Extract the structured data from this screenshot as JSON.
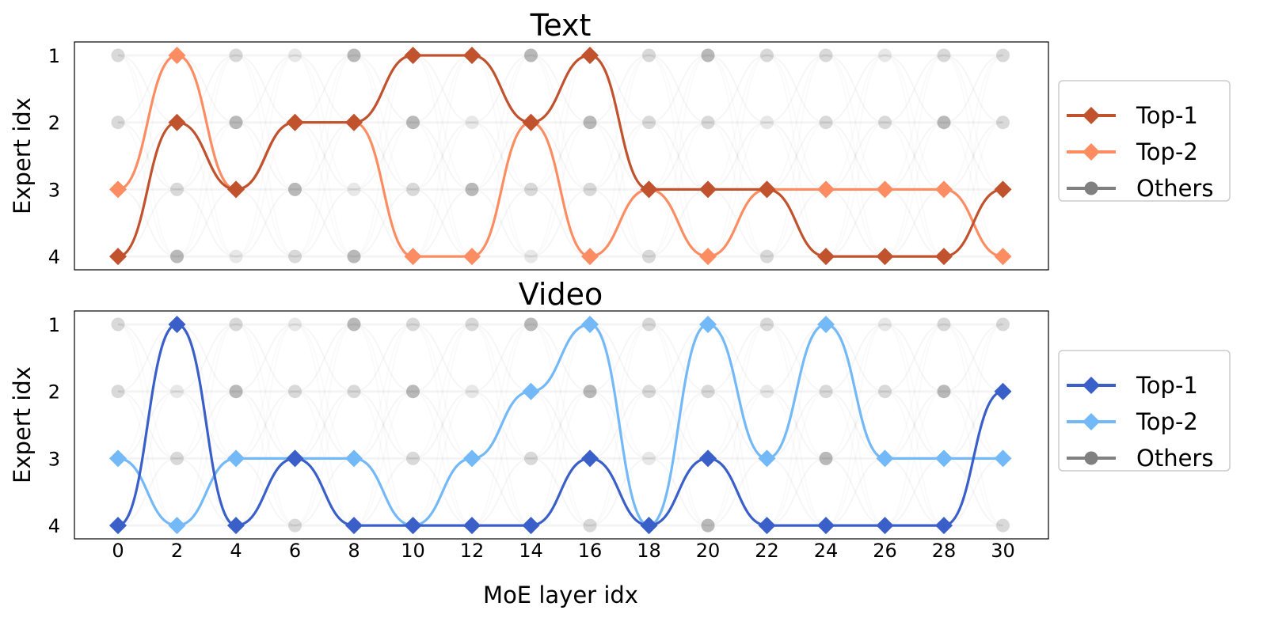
{
  "figure": {
    "xlabel": "MoE layer idx",
    "x_ticks": [
      "0",
      "2",
      "4",
      "6",
      "8",
      "10",
      "12",
      "14",
      "16",
      "18",
      "20",
      "22",
      "24",
      "26",
      "28",
      "30"
    ]
  },
  "chart_data": [
    {
      "type": "line",
      "title": "Text",
      "xlabel": "",
      "ylabel": "Expert idx",
      "x": [
        0,
        2,
        4,
        6,
        8,
        10,
        12,
        14,
        16,
        18,
        20,
        22,
        24,
        26,
        28,
        30
      ],
      "y_ticks": [
        "1",
        "2",
        "3",
        "4"
      ],
      "ylim": [
        1,
        4
      ],
      "y_inverted": true,
      "legend_position": "right",
      "series": [
        {
          "name": "Top-1",
          "color": "#c0522e",
          "marker": "diamond",
          "values": [
            4,
            2,
            3,
            2,
            2,
            1,
            1,
            2,
            1,
            3,
            3,
            3,
            4,
            4,
            4,
            3
          ]
        },
        {
          "name": "Top-2",
          "color": "#fc8d62",
          "marker": "diamond",
          "values": [
            3,
            1,
            3,
            2,
            2,
            4,
            4,
            2,
            4,
            3,
            4,
            3,
            3,
            3,
            3,
            4
          ]
        },
        {
          "name": "Others",
          "color": "#808080",
          "marker": "circle",
          "points": [
            [
              0,
              1
            ],
            [
              0,
              2
            ],
            [
              2,
              3
            ],
            [
              2,
              4
            ],
            [
              4,
              1
            ],
            [
              4,
              2
            ],
            [
              4,
              4
            ],
            [
              6,
              1
            ],
            [
              6,
              3
            ],
            [
              6,
              4
            ],
            [
              8,
              1
            ],
            [
              8,
              3
            ],
            [
              8,
              4
            ],
            [
              10,
              2
            ],
            [
              10,
              3
            ],
            [
              12,
              2
            ],
            [
              12,
              3
            ],
            [
              14,
              1
            ],
            [
              14,
              3
            ],
            [
              14,
              4
            ],
            [
              16,
              2
            ],
            [
              16,
              3
            ],
            [
              18,
              1
            ],
            [
              18,
              2
            ],
            [
              18,
              4
            ],
            [
              20,
              1
            ],
            [
              20,
              2
            ],
            [
              22,
              1
            ],
            [
              22,
              2
            ],
            [
              22,
              4
            ],
            [
              24,
              1
            ],
            [
              24,
              2
            ],
            [
              26,
              1
            ],
            [
              26,
              2
            ],
            [
              28,
              1
            ],
            [
              28,
              2
            ],
            [
              30,
              1
            ],
            [
              30,
              2
            ]
          ]
        }
      ]
    },
    {
      "type": "line",
      "title": "Video",
      "xlabel": "MoE layer idx",
      "ylabel": "Expert idx",
      "x": [
        0,
        2,
        4,
        6,
        8,
        10,
        12,
        14,
        16,
        18,
        20,
        22,
        24,
        26,
        28,
        30
      ],
      "y_ticks": [
        "1",
        "2",
        "3",
        "4"
      ],
      "ylim": [
        1,
        4
      ],
      "y_inverted": true,
      "legend_position": "right",
      "series": [
        {
          "name": "Top-1",
          "color": "#3a5fc8",
          "marker": "diamond",
          "values": [
            4,
            1,
            4,
            3,
            4,
            4,
            4,
            4,
            3,
            4,
            3,
            4,
            4,
            4,
            4,
            2
          ]
        },
        {
          "name": "Top-2",
          "color": "#74b9f7",
          "marker": "diamond",
          "values": [
            3,
            4,
            3,
            3,
            3,
            4,
            3,
            2,
            1,
            4,
            1,
            3,
            1,
            3,
            3,
            3
          ]
        },
        {
          "name": "Others",
          "color": "#808080",
          "marker": "circle",
          "points": [
            [
              0,
              1
            ],
            [
              0,
              2
            ],
            [
              2,
              2
            ],
            [
              2,
              3
            ],
            [
              4,
              1
            ],
            [
              4,
              2
            ],
            [
              6,
              1
            ],
            [
              6,
              2
            ],
            [
              6,
              4
            ],
            [
              8,
              1
            ],
            [
              8,
              2
            ],
            [
              10,
              1
            ],
            [
              10,
              2
            ],
            [
              10,
              3
            ],
            [
              12,
              1
            ],
            [
              12,
              2
            ],
            [
              14,
              1
            ],
            [
              14,
              3
            ],
            [
              16,
              2
            ],
            [
              16,
              4
            ],
            [
              18,
              1
            ],
            [
              18,
              2
            ],
            [
              18,
              3
            ],
            [
              20,
              2
            ],
            [
              20,
              4
            ],
            [
              22,
              1
            ],
            [
              22,
              2
            ],
            [
              24,
              2
            ],
            [
              24,
              3
            ],
            [
              26,
              1
            ],
            [
              26,
              2
            ],
            [
              28,
              1
            ],
            [
              28,
              2
            ],
            [
              30,
              1
            ],
            [
              30,
              4
            ]
          ]
        }
      ]
    }
  ]
}
